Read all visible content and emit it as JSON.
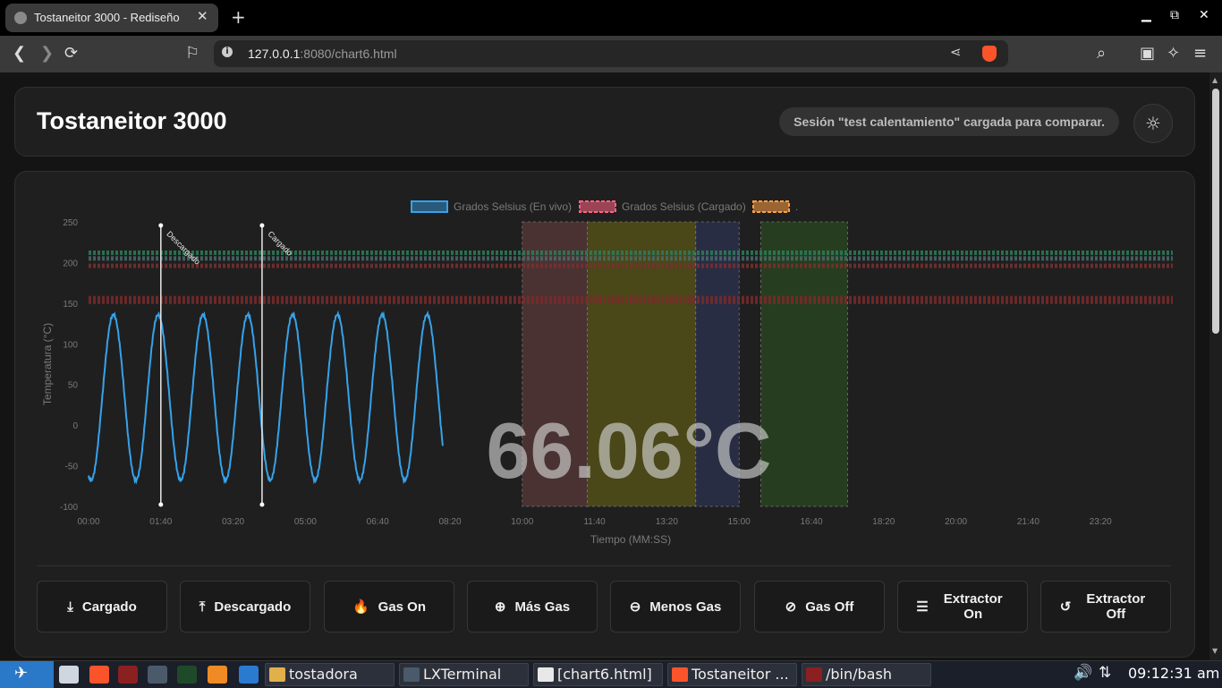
{
  "browser": {
    "tab_title": "Tostaneitor 3000 - Rediseño",
    "url_host": "127.0.0.1",
    "url_rest": ":8080/chart6.html"
  },
  "header": {
    "title": "Tostaneitor 3000",
    "status": "Sesión \"test calentamiento\" cargada para comparar.",
    "theme_icon": "sun-icon"
  },
  "chart": {
    "overlay_value": "66.06°C",
    "legend": [
      {
        "label": "Grados Selsius (En vivo)",
        "color": "#36a2eb"
      },
      {
        "label": "Grados Selsius (Cargado)",
        "color": "#ff6384"
      },
      {
        "label": ".",
        "color": "#ff9f40"
      }
    ],
    "ylabel": "Temperatura (°C)",
    "xlabel": "Tiempo (MM:SS)",
    "yticks": [
      "250",
      "200",
      "150",
      "100",
      "50",
      "0",
      "-50",
      "-100"
    ],
    "xticks": [
      "00:00",
      "01:40",
      "03:20",
      "05:00",
      "06:40",
      "08:20",
      "10:00",
      "11:40",
      "13:20",
      "15:00",
      "16:40",
      "18:20",
      "20:00",
      "21:40",
      "23:20"
    ],
    "markers": [
      {
        "label": "Descargado",
        "time_s": 100
      },
      {
        "label": "Cargado",
        "time_s": 240
      }
    ]
  },
  "chart_data": {
    "type": "line",
    "xlabel": "Tiempo (MM:SS)",
    "ylabel": "Temperatura (°C)",
    "ylim": [
      -100,
      250
    ],
    "xlim": [
      0,
      1500
    ],
    "series": [
      {
        "name": "Grados Selsius (En vivo)",
        "color": "#36a2eb",
        "x_range_s": [
          0,
          490
        ],
        "model": "oscillation",
        "amplitude": 102,
        "offset": 34,
        "period_s": 62,
        "start_value": 130
      }
    ],
    "reference_lines": [
      {
        "y": 212,
        "color": "#2e7d5b"
      },
      {
        "y": 205,
        "color": "#4a6a6a"
      },
      {
        "y": 196,
        "color": "#7a3030"
      },
      {
        "y": 154,
        "color": "#7a2a2a"
      }
    ],
    "phase_bands": [
      {
        "from_s": 600,
        "to_s": 690,
        "color": "#5a3a3a"
      },
      {
        "from_s": 690,
        "to_s": 840,
        "color": "#5a5518"
      },
      {
        "from_s": 840,
        "to_s": 900,
        "color": "#2e3350"
      },
      {
        "from_s": 930,
        "to_s": 1050,
        "color": "#2a4a20"
      }
    ]
  },
  "buttons": [
    {
      "label": "Cargado",
      "icon": "download-icon",
      "glyph": "⤓"
    },
    {
      "label": "Descargado",
      "icon": "upload-icon",
      "glyph": "⤒"
    },
    {
      "label": "Gas On",
      "icon": "flame-icon",
      "glyph": "🔥"
    },
    {
      "label": "Más Gas",
      "icon": "arrow-up-circle-icon",
      "glyph": "⊕"
    },
    {
      "label": "Menos Gas",
      "icon": "arrow-down-circle-icon",
      "glyph": "⊖"
    },
    {
      "label": "Gas Off",
      "icon": "flame-off-icon",
      "glyph": "⊘"
    },
    {
      "label": "Extractor On",
      "icon": "sliders-icon",
      "glyph": "☰"
    },
    {
      "label": "Extractor Off",
      "icon": "rotate-ccw-icon",
      "glyph": "↺"
    }
  ],
  "taskbar": {
    "tasks": [
      {
        "label": "tostadora",
        "icon": "folder-icon",
        "color": "#e0b04a"
      },
      {
        "label": "LXTerminal",
        "icon": "terminal-icon",
        "color": "#4a5a6a"
      },
      {
        "label": "[chart6.html]",
        "icon": "text-file-icon",
        "color": "#e8e8e8"
      },
      {
        "label": "Tostaneitor ...",
        "icon": "brave-icon",
        "color": "#fb542b"
      },
      {
        "label": "/bin/bash",
        "icon": "terminal-red-icon",
        "color": "#8a2020"
      }
    ],
    "clock": "09:12:31 am"
  }
}
